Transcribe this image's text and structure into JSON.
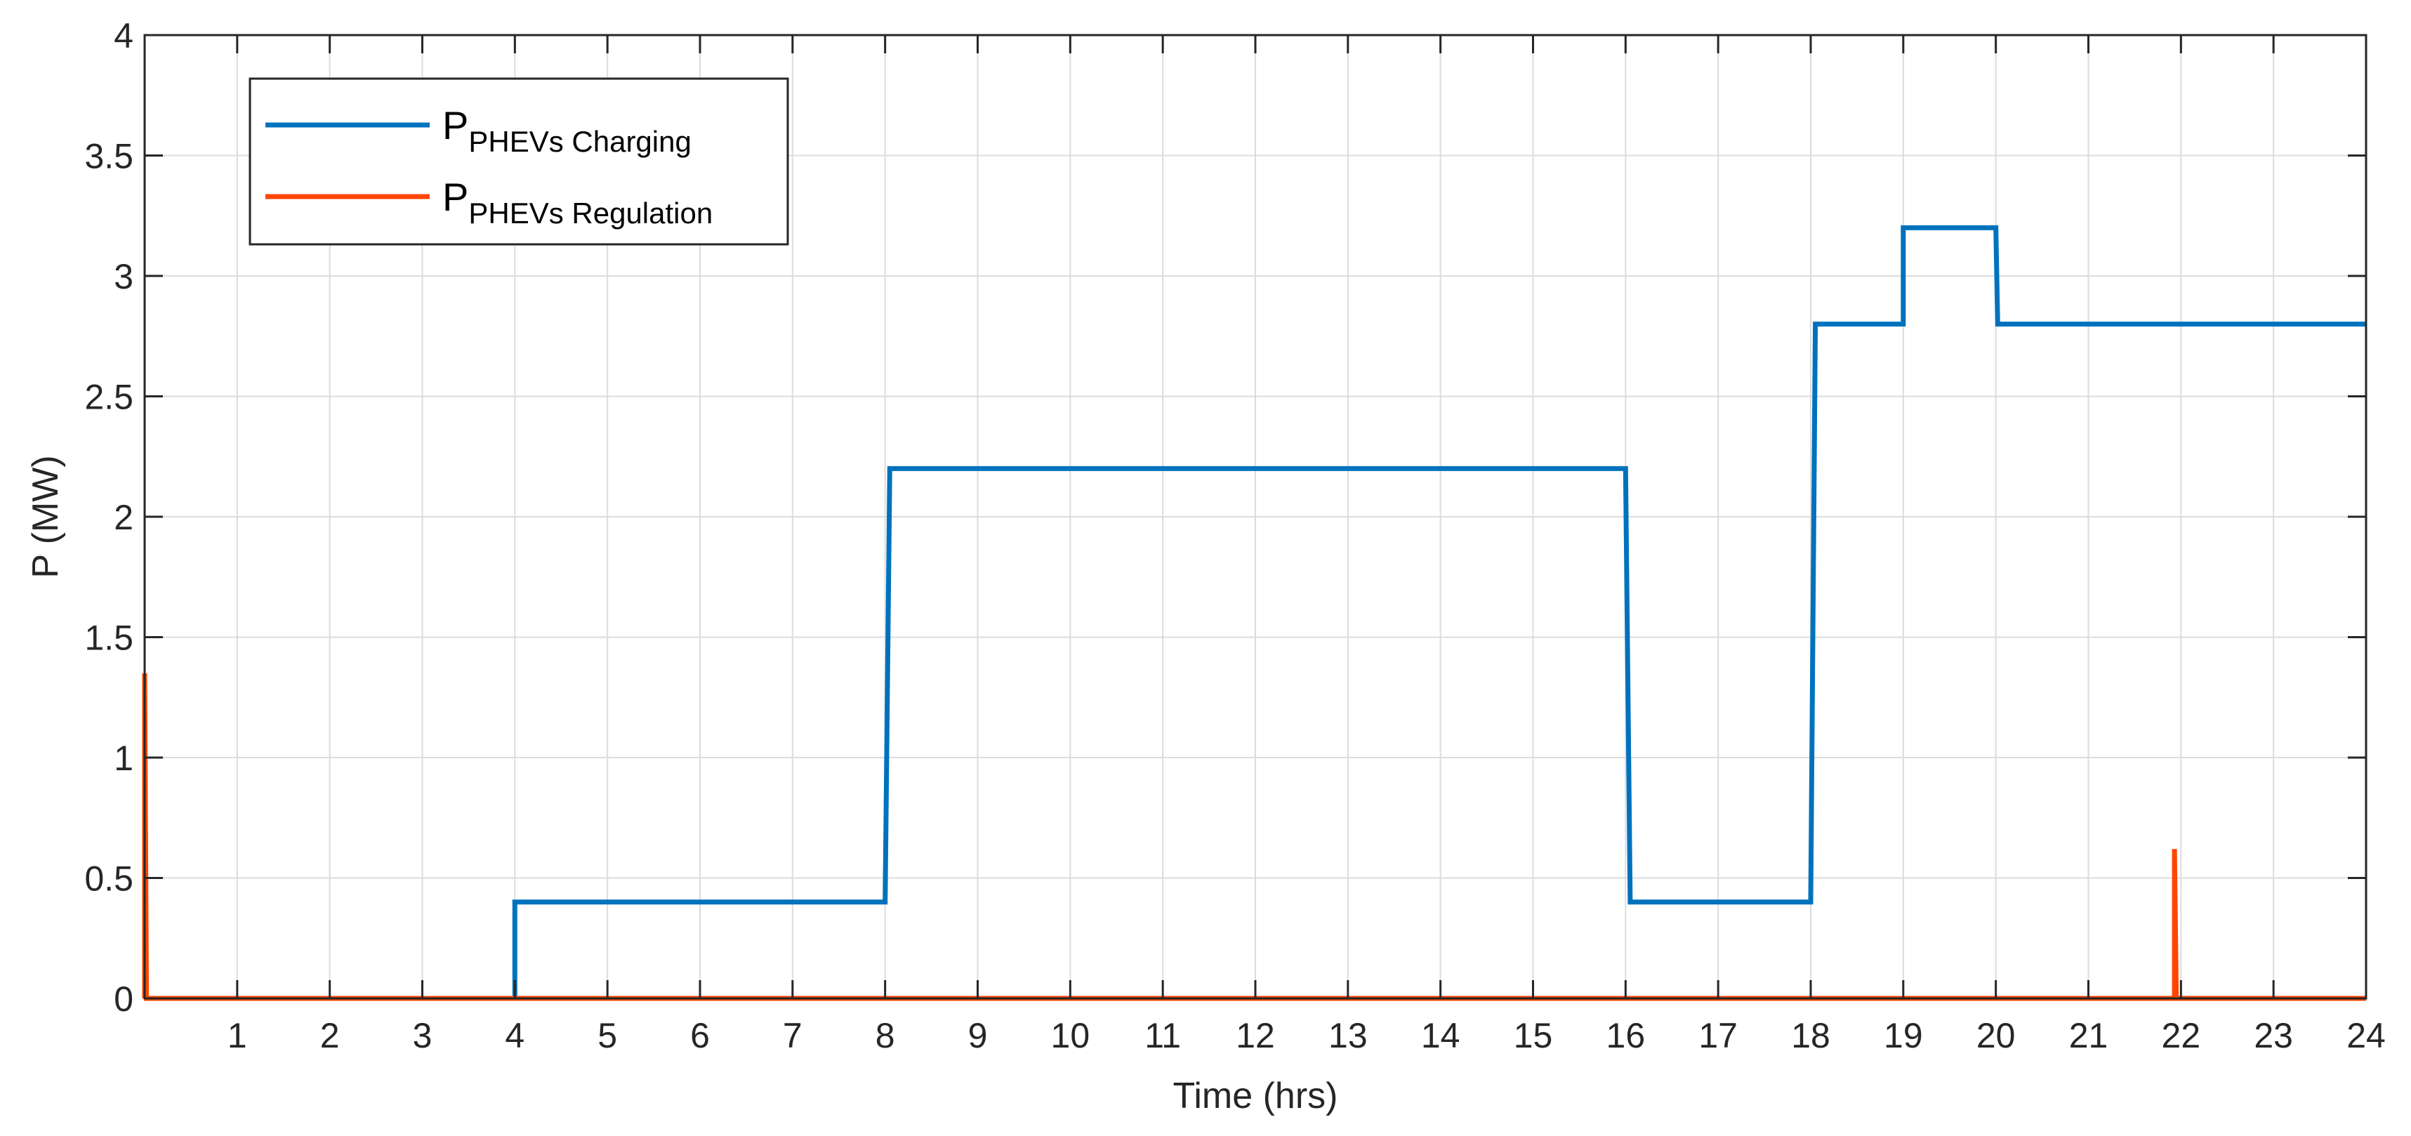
{
  "chart_data": {
    "type": "line",
    "xlabel": "Time (hrs)",
    "ylabel": "P (MW)",
    "xlim": [
      0,
      24
    ],
    "ylim": [
      0,
      4
    ],
    "xticks": [
      "1",
      "2",
      "3",
      "4",
      "5",
      "6",
      "7",
      "8",
      "9",
      "10",
      "11",
      "12",
      "13",
      "14",
      "15",
      "16",
      "17",
      "18",
      "19",
      "20",
      "21",
      "22",
      "23",
      "24"
    ],
    "yticks": [
      "0",
      "0.5",
      "1",
      "1.5",
      "2",
      "2.5",
      "3",
      "3.5",
      "4"
    ],
    "grid": true,
    "legend_position": "top-left",
    "series": [
      {
        "name_main": "P",
        "name_sub": "PHEVs Charging",
        "color": "#0072BD",
        "x": [
          0,
          4,
          4,
          8,
          8.05,
          16,
          16.05,
          18,
          18.05,
          19,
          19,
          20,
          20.02,
          24
        ],
        "y": [
          0,
          0,
          0.4,
          0.4,
          2.2,
          2.2,
          0.4,
          0.4,
          2.8,
          2.8,
          3.2,
          3.2,
          2.8,
          2.8
        ]
      },
      {
        "name_main": "P",
        "name_sub": "PHEVs Regulation",
        "color": "#FF4500",
        "x": [
          0,
          0,
          0.02,
          21.93,
          21.93,
          21.95,
          24
        ],
        "y": [
          0,
          1.35,
          0,
          0,
          0.62,
          0,
          0
        ]
      }
    ]
  }
}
